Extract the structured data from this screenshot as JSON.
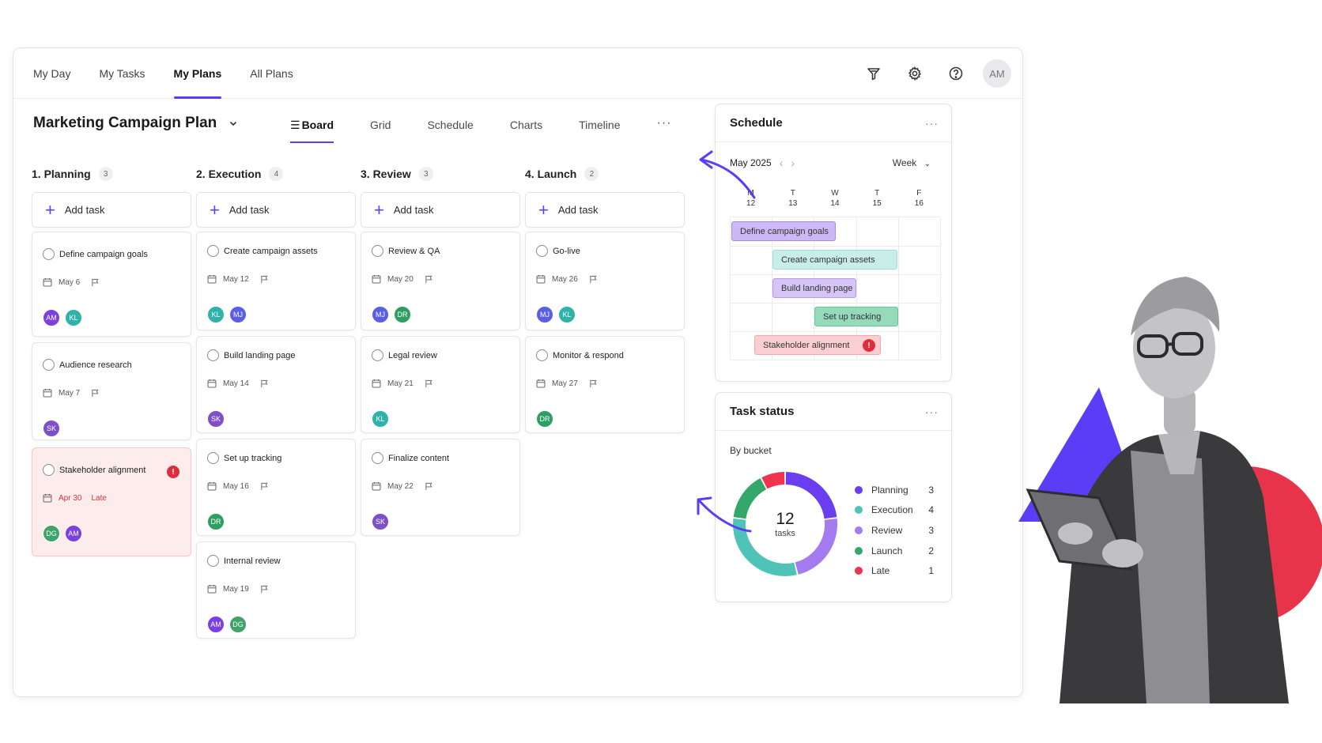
{
  "topnav": {
    "tabs": [
      {
        "label": "My Day"
      },
      {
        "label": "My Tasks"
      },
      {
        "label": "My Plans",
        "active": true
      },
      {
        "label": "All Plans"
      }
    ],
    "user_initials": "AM"
  },
  "plan": {
    "title": "Marketing Campaign Plan",
    "views": [
      {
        "label": "Board",
        "active": true
      },
      {
        "label": "Grid"
      },
      {
        "label": "Schedule"
      },
      {
        "label": "Charts"
      },
      {
        "label": "Timeline"
      }
    ],
    "more": "···"
  },
  "board": {
    "add_task_label": "Add task",
    "columns": [
      {
        "name": "1. Planning",
        "count": "3",
        "cards": [
          {
            "title": "Define campaign goals",
            "date": "May 6",
            "assignees": [
              "AM",
              "KL"
            ]
          },
          {
            "title": "Audience research",
            "date": "May 7",
            "assignees": [
              "SK"
            ]
          },
          {
            "title": "Stakeholder alignment",
            "date": "Apr 30",
            "status": "Late",
            "alert": "!",
            "assignees": [
              "DG",
              "AM"
            ]
          }
        ]
      },
      {
        "name": "2. Execution",
        "count": "4",
        "cards": [
          {
            "title": "Create campaign assets",
            "date": "May 12",
            "assignees": [
              "KL",
              "MJ"
            ]
          },
          {
            "title": "Build landing page",
            "date": "May 14",
            "assignees": [
              "SK"
            ]
          },
          {
            "title": "Set up tracking",
            "date": "May 16",
            "assignees": [
              "DR"
            ]
          },
          {
            "title": "Internal review",
            "date": "May 19",
            "assignees": [
              "AM",
              "DG"
            ]
          }
        ]
      },
      {
        "name": "3. Review",
        "count": "3",
        "cards": [
          {
            "title": "Review & QA",
            "date": "May 20",
            "assignees": [
              "MJ",
              "DR"
            ]
          },
          {
            "title": "Legal review",
            "date": "May 21",
            "assignees": [
              "KL"
            ]
          },
          {
            "title": "Finalize content",
            "date": "May 22",
            "assignees": [
              "SK"
            ]
          }
        ]
      },
      {
        "name": "4. Launch",
        "count": "2",
        "cards": [
          {
            "title": "Go-live",
            "date": "May 26",
            "assignees": [
              "MJ",
              "KL"
            ]
          },
          {
            "title": "Monitor & respond",
            "date": "May 27",
            "assignees": [
              "DR"
            ]
          }
        ]
      }
    ]
  },
  "avatar_colors": {
    "AM": "#7b3fe4",
    "KL": "#2fb3a8",
    "MJ": "#5a5ee6",
    "SK": "#7d4fc9",
    "DG": "#3fa36b",
    "DR": "#2f9e63"
  },
  "schedule": {
    "title": "Schedule",
    "more": "···",
    "month": "May 2025",
    "range": "Week",
    "days": [
      {
        "dow": "M",
        "date": "12"
      },
      {
        "dow": "T",
        "date": "13"
      },
      {
        "dow": "W",
        "date": "14"
      },
      {
        "dow": "T",
        "date": "15"
      },
      {
        "dow": "F",
        "date": "16"
      }
    ],
    "bars": [
      {
        "label": "Define campaign goals",
        "color": "#cdb8f5",
        "border": "#a98ae8"
      },
      {
        "label": "Create campaign assets",
        "color": "#c8eeea",
        "border": "#a5ddd6"
      },
      {
        "label": "Build landing page",
        "color": "#d5c4f5",
        "border": "#b39ae8"
      },
      {
        "label": "Set up tracking",
        "color": "#96dbb9",
        "border": "#6cc597"
      },
      {
        "label": "Stakeholder alignment",
        "color": "#fbcfd2",
        "border": "#f2a5ab",
        "alert": "!"
      }
    ]
  },
  "task_status": {
    "title": "Task status",
    "more": "···",
    "subtitle": "By bucket",
    "total": "12",
    "total_label": "tasks",
    "buckets": [
      {
        "name": "Planning",
        "count": 3,
        "color": "#6a3df0"
      },
      {
        "name": "Execution",
        "count": 4,
        "color": "#4fc3b8"
      },
      {
        "name": "Review",
        "count": 3,
        "color": "#a57cf0"
      },
      {
        "name": "Launch",
        "count": 2,
        "color": "#33a86a"
      },
      {
        "name": "Late",
        "count": 1,
        "color": "#f0344f"
      }
    ]
  }
}
